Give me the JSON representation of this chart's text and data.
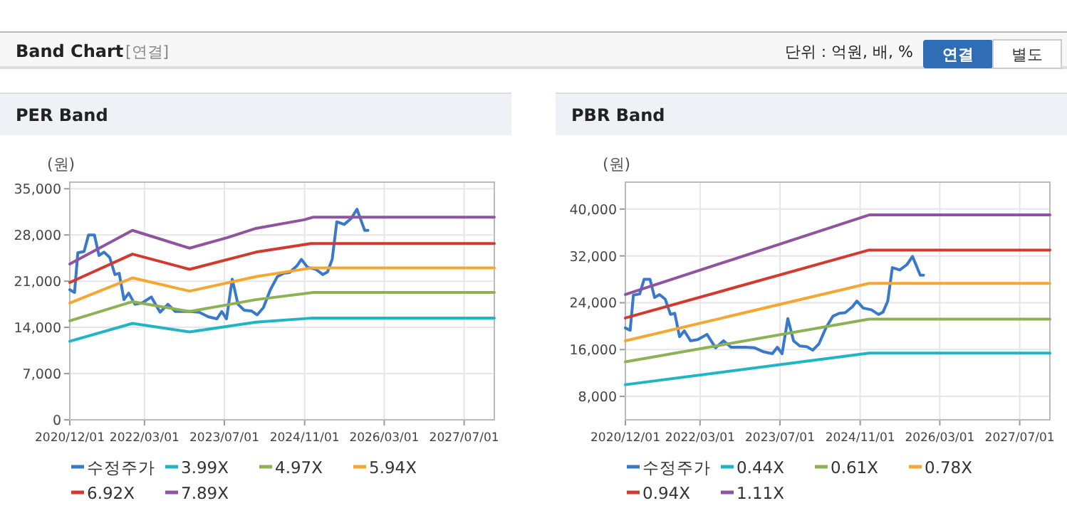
{
  "chart_data": [
    {
      "type": "other",
      "title": "Band Chart",
      "annotations": [
        "[연결]",
        "단위 : 억원, 배, %",
        "연결",
        "별도"
      ]
    },
    {
      "type": "line",
      "title": "PER Band",
      "ylabel": "(원)",
      "legend": "bottom",
      "grid": true,
      "line_style": "solid",
      "marker": "none",
      "xlim": [
        "2020-12-01",
        "2028-01-01"
      ],
      "ylim": [
        0,
        36000
      ],
      "xticks": [
        {
          "value": "2020-12-01",
          "label": "2020/12/01"
        },
        {
          "value": "2022-03-01",
          "label": "2022/03/01"
        },
        {
          "value": "2023-07-01",
          "label": "2023/07/01"
        },
        {
          "value": "2024-11-01",
          "label": "2024/11/01"
        },
        {
          "value": "2026-03-01",
          "label": "2026/03/01"
        },
        {
          "value": "2027-07-01",
          "label": "2027/07/01"
        }
      ],
      "yticks": [
        0,
        {
          "value": 7000,
          "label": "7,000"
        },
        {
          "value": 14000,
          "label": "14,000"
        },
        {
          "value": 21000,
          "label": "21,000"
        },
        {
          "value": 28000,
          "label": "28,000"
        },
        {
          "value": 35000,
          "label": "35,000"
        }
      ],
      "series": [
        {
          "name": "수정주가",
          "color": "#3a78c9",
          "x": [
            "2020-12-01",
            "2020-12-30",
            "2021-01-19",
            "2021-02-26",
            "2021-03-25",
            "2021-04-30",
            "2021-05-28",
            "2021-06-27",
            "2021-08-01",
            "2021-09-02",
            "2021-09-28",
            "2021-10-27",
            "2021-11-25",
            "2022-01-02",
            "2022-02-15",
            "2022-04-12",
            "2022-06-04",
            "2022-07-22",
            "2022-09-05",
            "2022-12-01",
            "2023-01-28",
            "2023-03-25",
            "2023-05-16",
            "2023-06-15",
            "2023-07-14",
            "2023-08-18",
            "2023-09-22",
            "2023-10-30",
            "2023-12-12",
            "2024-01-17",
            "2024-02-24",
            "2024-04-06",
            "2024-05-19",
            "2024-06-27",
            "2024-08-01",
            "2024-09-14",
            "2024-10-12",
            "2024-11-19",
            "2025-01-08",
            "2025-02-20",
            "2025-03-20",
            "2025-04-18",
            "2025-05-16",
            "2025-06-30",
            "2025-08-12",
            "2025-09-16",
            "2025-11-02",
            "2025-11-22"
          ],
          "values": [
            19700,
            19300,
            25300,
            25500,
            28000,
            28000,
            24900,
            25400,
            24600,
            22000,
            22200,
            18200,
            19200,
            17500,
            17700,
            18600,
            16300,
            17500,
            16400,
            16400,
            16300,
            15600,
            15300,
            16400,
            15300,
            21300,
            17500,
            16600,
            16500,
            15900,
            17000,
            19700,
            21700,
            22200,
            22300,
            23300,
            24300,
            23100,
            22800,
            22000,
            22400,
            24300,
            30000,
            29600,
            30500,
            31900,
            28700,
            28700
          ]
        },
        {
          "name": "3.99X",
          "color": "#1fb5c4",
          "x": [
            "2020-12-01",
            "2021-12-18",
            "2022-12-01",
            "2024-01-10",
            "2024-12-10",
            "2028-01-01"
          ],
          "values": [
            11900,
            14600,
            13300,
            14800,
            15400,
            15400
          ]
        },
        {
          "name": "4.97X",
          "color": "#8db255",
          "x": [
            "2020-12-01",
            "2021-12-18",
            "2022-12-01",
            "2024-01-10",
            "2024-12-25",
            "2028-01-01"
          ],
          "values": [
            15000,
            17900,
            16400,
            18200,
            19300,
            19300
          ]
        },
        {
          "name": "5.94X",
          "color": "#f5a733",
          "x": [
            "2020-12-01",
            "2021-12-18",
            "2022-12-01",
            "2024-01-10",
            "2024-12-10",
            "2028-01-01"
          ],
          "values": [
            17700,
            21500,
            19500,
            21700,
            23000,
            23000
          ]
        },
        {
          "name": "6.92X",
          "color": "#d13b2f",
          "x": [
            "2020-12-01",
            "2021-12-18",
            "2022-12-01",
            "2024-01-10",
            "2024-12-10",
            "2028-01-01"
          ],
          "values": [
            20800,
            25100,
            22800,
            25400,
            26700,
            26700
          ]
        },
        {
          "name": "7.89X",
          "color": "#8e54a0",
          "x": [
            "2020-12-01",
            "2021-12-18",
            "2022-12-01",
            "2023-07-20",
            "2024-01-10",
            "2024-10-28",
            "2024-12-25",
            "2028-01-01"
          ],
          "values": [
            23600,
            28700,
            26000,
            27600,
            29000,
            30300,
            30700,
            30700
          ]
        }
      ]
    },
    {
      "type": "line",
      "title": "PBR Band",
      "ylabel": "(원)",
      "legend": "bottom",
      "grid": true,
      "line_style": "solid",
      "marker": "none",
      "xlim": [
        "2020-12-01",
        "2028-01-01"
      ],
      "ylim": [
        4000,
        44600
      ],
      "xticks": [
        {
          "value": "2020-12-01",
          "label": "2020/12/01"
        },
        {
          "value": "2022-03-01",
          "label": "2022/03/01"
        },
        {
          "value": "2023-07-01",
          "label": "2023/07/01"
        },
        {
          "value": "2024-11-01",
          "label": "2024/11/01"
        },
        {
          "value": "2026-03-01",
          "label": "2026/03/01"
        },
        {
          "value": "2027-07-01",
          "label": "2027/07/01"
        }
      ],
      "yticks": [
        {
          "value": 8000,
          "label": "8,000"
        },
        {
          "value": 16000,
          "label": "16,000"
        },
        {
          "value": 24000,
          "label": "24,000"
        },
        {
          "value": 32000,
          "label": "32,000"
        },
        {
          "value": 40000,
          "label": "40,000"
        }
      ],
      "series": [
        {
          "name": "수정주가",
          "color": "#3a78c9",
          "x": [
            "2020-12-01",
            "2020-12-30",
            "2021-01-19",
            "2021-02-26",
            "2021-03-25",
            "2021-04-30",
            "2021-05-28",
            "2021-06-27",
            "2021-08-01",
            "2021-09-02",
            "2021-09-28",
            "2021-10-27",
            "2021-11-25",
            "2022-01-02",
            "2022-02-15",
            "2022-04-12",
            "2022-06-04",
            "2022-07-22",
            "2022-09-05",
            "2022-12-01",
            "2023-01-28",
            "2023-03-25",
            "2023-05-16",
            "2023-06-15",
            "2023-07-14",
            "2023-08-18",
            "2023-09-22",
            "2023-10-30",
            "2023-12-12",
            "2024-01-17",
            "2024-02-24",
            "2024-04-06",
            "2024-05-19",
            "2024-06-27",
            "2024-08-01",
            "2024-09-14",
            "2024-10-12",
            "2024-11-19",
            "2025-01-08",
            "2025-02-20",
            "2025-03-20",
            "2025-04-18",
            "2025-05-16",
            "2025-06-30",
            "2025-08-12",
            "2025-09-16",
            "2025-11-02",
            "2025-11-22"
          ],
          "values": [
            19700,
            19300,
            25300,
            25500,
            28000,
            28000,
            24900,
            25400,
            24600,
            22000,
            22200,
            18200,
            19200,
            17500,
            17700,
            18600,
            16300,
            17500,
            16400,
            16400,
            16300,
            15600,
            15300,
            16400,
            15300,
            21300,
            17500,
            16600,
            16500,
            15900,
            17000,
            19700,
            21700,
            22200,
            22300,
            23300,
            24300,
            23100,
            22800,
            22000,
            22400,
            24300,
            30000,
            29600,
            30500,
            31900,
            28700,
            28700
          ]
        },
        {
          "name": "0.44X",
          "color": "#1fb5c4",
          "x": [
            "2020-12-01",
            "2024-12-25",
            "2028-01-01"
          ],
          "values": [
            10000,
            15400,
            15400
          ]
        },
        {
          "name": "0.61X",
          "color": "#8db255",
          "x": [
            "2020-12-01",
            "2024-12-25",
            "2028-01-01"
          ],
          "values": [
            13900,
            21200,
            21200
          ]
        },
        {
          "name": "0.78X",
          "color": "#f5a733",
          "x": [
            "2020-12-01",
            "2024-12-25",
            "2028-01-01"
          ],
          "values": [
            17500,
            27300,
            27300
          ]
        },
        {
          "name": "0.94X",
          "color": "#d13b2f",
          "x": [
            "2020-12-01",
            "2024-12-25",
            "2028-01-01"
          ],
          "values": [
            21400,
            33000,
            33000
          ]
        },
        {
          "name": "1.11X",
          "color": "#8e54a0",
          "x": [
            "2020-12-01",
            "2024-12-25",
            "2028-01-01"
          ],
          "values": [
            25400,
            39000,
            39000
          ]
        }
      ]
    }
  ]
}
